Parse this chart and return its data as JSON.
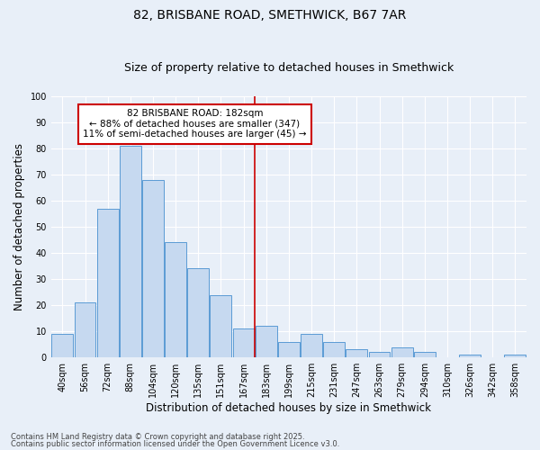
{
  "title1": "82, BRISBANE ROAD, SMETHWICK, B67 7AR",
  "title2": "Size of property relative to detached houses in Smethwick",
  "xlabel": "Distribution of detached houses by size in Smethwick",
  "ylabel": "Number of detached properties",
  "categories": [
    "40sqm",
    "56sqm",
    "72sqm",
    "88sqm",
    "104sqm",
    "120sqm",
    "135sqm",
    "151sqm",
    "167sqm",
    "183sqm",
    "199sqm",
    "215sqm",
    "231sqm",
    "247sqm",
    "263sqm",
    "279sqm",
    "294sqm",
    "310sqm",
    "326sqm",
    "342sqm",
    "358sqm"
  ],
  "values": [
    9,
    21,
    57,
    81,
    68,
    44,
    34,
    24,
    11,
    12,
    6,
    9,
    6,
    3,
    2,
    4,
    2,
    0,
    1,
    0,
    1
  ],
  "bar_color": "#c6d9f0",
  "bar_edge_color": "#5b9bd5",
  "vline_idx": 9,
  "annotation_text": "82 BRISBANE ROAD: 182sqm\n← 88% of detached houses are smaller (347)\n11% of semi-detached houses are larger (45) →",
  "annotation_box_color": "#ffffff",
  "annotation_box_edge": "#cc0000",
  "vline_color": "#cc0000",
  "ylim": [
    0,
    100
  ],
  "yticks": [
    0,
    10,
    20,
    30,
    40,
    50,
    60,
    70,
    80,
    90,
    100
  ],
  "background_color": "#e8eff8",
  "footer1": "Contains HM Land Registry data © Crown copyright and database right 2025.",
  "footer2": "Contains public sector information licensed under the Open Government Licence v3.0.",
  "title_fontsize": 10,
  "subtitle_fontsize": 9,
  "axis_label_fontsize": 8.5,
  "tick_fontsize": 7,
  "annotation_fontsize": 7.5,
  "footer_fontsize": 6
}
